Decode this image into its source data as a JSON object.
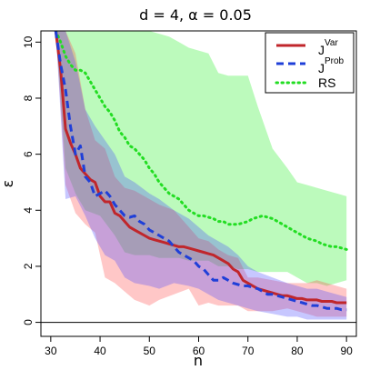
{
  "chart_data": {
    "type": "line",
    "title": "d = 4, α = 0.05",
    "xlabel": "n",
    "ylabel": "ε",
    "xlim": [
      28,
      92
    ],
    "ylim": [
      -0.5,
      10.4
    ],
    "xticks": [
      30,
      40,
      50,
      60,
      70,
      80,
      90
    ],
    "yticks": [
      0,
      2,
      4,
      6,
      8,
      10
    ],
    "reference_line_y": 0,
    "legend_position": "top-right",
    "series": [
      {
        "name": "J",
        "superscript": "Var",
        "color": "#c0262b",
        "style": "solid",
        "x": [
          31,
          32,
          33,
          34,
          35,
          36,
          37,
          38,
          39,
          40,
          41,
          42,
          43,
          44,
          45,
          46,
          47,
          48,
          49,
          50,
          51,
          52,
          53,
          54,
          55,
          56,
          57,
          58,
          59,
          60,
          61,
          62,
          63,
          64,
          65,
          66,
          67,
          68,
          69,
          70,
          71,
          72,
          73,
          74,
          75,
          76,
          77,
          78,
          79,
          80,
          81,
          82,
          83,
          84,
          85,
          86,
          87,
          88,
          89,
          90
        ],
        "y": [
          10.4,
          9.0,
          6.9,
          6.4,
          6.0,
          5.5,
          5.3,
          5.1,
          5.0,
          4.5,
          4.3,
          4.3,
          3.9,
          3.8,
          3.6,
          3.4,
          3.3,
          3.2,
          3.1,
          3.0,
          2.95,
          2.9,
          2.85,
          2.8,
          2.75,
          2.7,
          2.7,
          2.65,
          2.6,
          2.55,
          2.5,
          2.45,
          2.4,
          2.3,
          2.2,
          2.1,
          1.9,
          1.8,
          1.5,
          1.4,
          1.3,
          1.2,
          1.15,
          1.1,
          1.05,
          1.0,
          0.95,
          0.95,
          0.9,
          0.85,
          0.85,
          0.8,
          0.8,
          0.8,
          0.75,
          0.75,
          0.75,
          0.7,
          0.7,
          0.7
        ]
      },
      {
        "name": "J",
        "superscript": "Prob",
        "color": "#1f3fd8",
        "style": "dashed",
        "x": [
          31,
          32,
          33,
          34,
          35,
          36,
          37,
          38,
          39,
          40,
          41,
          42,
          43,
          44,
          45,
          46,
          47,
          48,
          49,
          50,
          51,
          52,
          53,
          54,
          55,
          56,
          57,
          58,
          59,
          60,
          61,
          62,
          63,
          64,
          65,
          66,
          67,
          68,
          69,
          70,
          71,
          72,
          73,
          74,
          75,
          76,
          77,
          78,
          79,
          80,
          81,
          82,
          83,
          84,
          85,
          86,
          87,
          88,
          89,
          90
        ],
        "y": [
          10.4,
          9.2,
          8.3,
          7.0,
          6.0,
          6.3,
          5.2,
          5.0,
          4.5,
          4.6,
          4.7,
          4.5,
          4.2,
          4.0,
          3.8,
          3.75,
          3.8,
          3.6,
          3.5,
          3.3,
          3.2,
          3.1,
          3.0,
          2.9,
          2.7,
          2.5,
          2.4,
          2.3,
          2.2,
          2.0,
          1.9,
          1.7,
          1.5,
          1.5,
          1.6,
          1.5,
          1.4,
          1.35,
          1.3,
          1.3,
          1.25,
          1.2,
          1.1,
          1.0,
          1.0,
          0.95,
          0.9,
          0.85,
          0.8,
          0.75,
          0.7,
          0.65,
          0.6,
          0.6,
          0.55,
          0.5,
          0.5,
          0.5,
          0.45,
          0.45
        ]
      },
      {
        "name": "RS",
        "color": "#22dd22",
        "style": "dotted",
        "x": [
          31,
          32,
          33,
          34,
          35,
          36,
          37,
          38,
          39,
          40,
          41,
          42,
          43,
          44,
          45,
          46,
          47,
          48,
          49,
          50,
          51,
          52,
          53,
          54,
          55,
          56,
          57,
          58,
          59,
          60,
          61,
          62,
          63,
          64,
          65,
          66,
          67,
          68,
          69,
          70,
          71,
          72,
          73,
          74,
          75,
          76,
          77,
          78,
          79,
          80,
          81,
          82,
          83,
          84,
          85,
          86,
          87,
          88,
          89,
          90
        ],
        "y": [
          10.4,
          10.0,
          9.5,
          9.2,
          9.0,
          9.0,
          8.9,
          8.6,
          8.3,
          8.0,
          7.7,
          7.5,
          7.2,
          6.8,
          6.6,
          6.3,
          6.2,
          6.0,
          5.8,
          5.5,
          5.3,
          5.0,
          4.8,
          4.6,
          4.5,
          4.4,
          4.2,
          4.0,
          3.9,
          3.8,
          3.8,
          3.75,
          3.7,
          3.6,
          3.6,
          3.5,
          3.5,
          3.5,
          3.55,
          3.6,
          3.7,
          3.75,
          3.8,
          3.75,
          3.7,
          3.6,
          3.5,
          3.4,
          3.3,
          3.2,
          3.1,
          3.0,
          2.95,
          2.9,
          2.8,
          2.75,
          2.7,
          2.7,
          2.65,
          2.6
        ]
      }
    ],
    "bands": [
      {
        "series": "RS",
        "color": "#22ee22",
        "opacity": 0.3,
        "x": [
          31,
          33,
          35,
          37,
          40,
          43,
          45,
          47,
          50,
          52,
          54,
          56,
          58,
          60,
          62,
          64,
          66,
          68,
          70,
          72,
          75,
          78,
          80,
          82,
          84,
          86,
          88,
          90
        ],
        "lower": [
          10.4,
          5.5,
          4.6,
          4.0,
          3.8,
          3.1,
          2.5,
          2.4,
          2.4,
          2.3,
          2.3,
          2.3,
          2.2,
          2.2,
          2.2,
          2.0,
          2.0,
          1.9,
          1.9,
          1.8,
          1.8,
          1.8,
          1.6,
          1.4,
          1.4,
          1.3,
          1.4,
          1.5
        ],
        "upper": [
          10.4,
          10.4,
          10.4,
          10.4,
          10.4,
          10.4,
          10.4,
          10.4,
          10.4,
          10.3,
          10.2,
          10.0,
          9.8,
          9.7,
          9.6,
          8.9,
          8.8,
          8.8,
          8.8,
          7.7,
          6.2,
          5.5,
          5.0,
          4.9,
          4.8,
          4.7,
          4.6,
          4.5
        ]
      },
      {
        "series": "J^Var",
        "color": "#ff4444",
        "opacity": 0.3,
        "x": [
          31,
          33,
          35,
          37,
          39,
          41,
          43,
          45,
          47,
          50,
          52,
          55,
          58,
          60,
          62,
          64,
          66,
          68,
          70,
          72,
          75,
          78,
          80,
          82,
          84,
          86,
          88,
          90
        ],
        "lower": [
          10.4,
          4.9,
          3.9,
          3.5,
          3.2,
          1.6,
          1.4,
          1.1,
          0.8,
          0.6,
          0.8,
          1.0,
          1.2,
          0.6,
          0.7,
          0.6,
          0.6,
          0.6,
          0.4,
          0.4,
          0.4,
          0.5,
          0.4,
          0.3,
          0.2,
          0.2,
          0.2,
          0.2
        ],
        "upper": [
          10.4,
          10.4,
          9.6,
          7.6,
          6.5,
          6.2,
          5.2,
          4.8,
          4.7,
          4.4,
          4.2,
          4.0,
          3.4,
          3.0,
          2.9,
          2.6,
          2.4,
          2.3,
          1.6,
          1.6,
          1.5,
          1.4,
          1.4,
          1.4,
          1.5,
          1.4,
          1.3,
          1.2
        ]
      },
      {
        "series": "J^Prob",
        "color": "#4444ff",
        "opacity": 0.3,
        "x": [
          31,
          33,
          35,
          37,
          39,
          41,
          43,
          45,
          47,
          50,
          52,
          55,
          58,
          60,
          62,
          64,
          66,
          68,
          70,
          72,
          75,
          78,
          80,
          82,
          84,
          86,
          88,
          90
        ],
        "lower": [
          10.4,
          4.4,
          4.5,
          3.8,
          3.0,
          2.4,
          2.2,
          1.6,
          1.4,
          1.3,
          1.2,
          1.4,
          1.3,
          1.2,
          1.0,
          0.8,
          0.7,
          0.6,
          0.5,
          0.4,
          0.3,
          0.2,
          0.2,
          0.1,
          0.1,
          0.1,
          0.1,
          0.1
        ],
        "upper": [
          10.4,
          10.4,
          9.3,
          7.6,
          7.0,
          6.5,
          6.0,
          5.2,
          5.0,
          4.6,
          4.4,
          4.0,
          3.7,
          3.4,
          3.1,
          2.9,
          2.7,
          2.4,
          2.0,
          1.8,
          1.6,
          1.4,
          1.3,
          1.2,
          1.2,
          1.1,
          1.0,
          0.9
        ]
      }
    ]
  }
}
